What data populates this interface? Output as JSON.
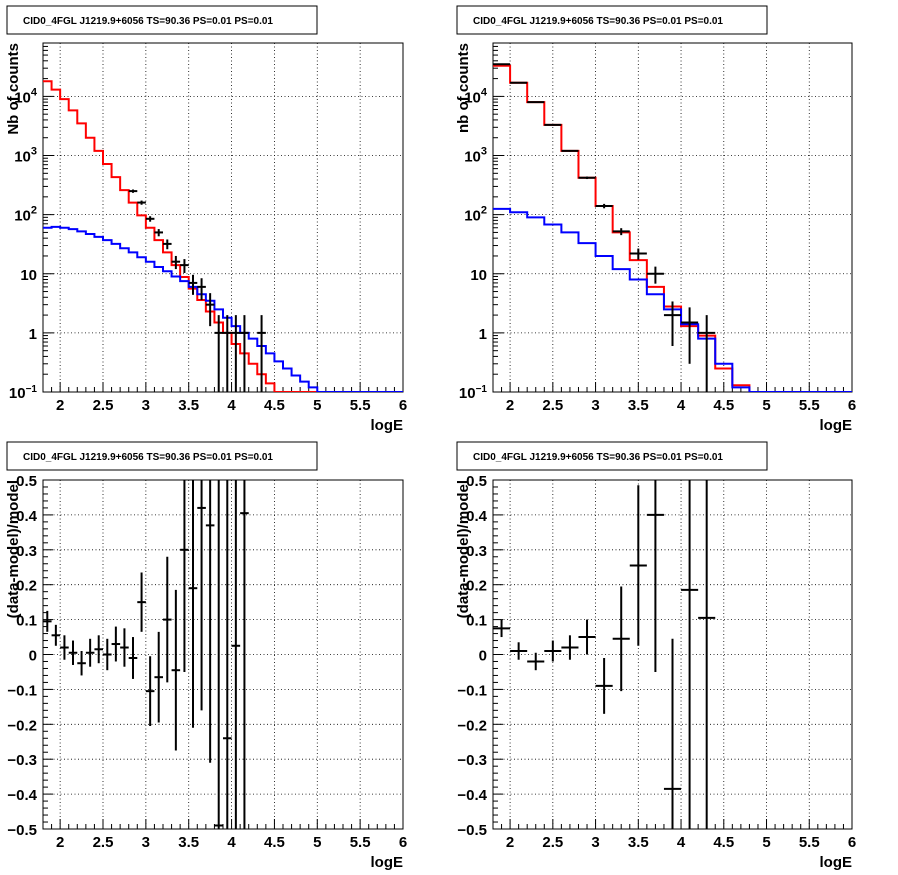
{
  "chart_data": [
    {
      "type": "line",
      "title": "CID0_4FGL J1219.9+6056 TS=90.36 PS=0.01 PS=0.01",
      "xlabel": "logE",
      "ylabel": "Nb of counts",
      "yscale": "log",
      "xlim": [
        1.8,
        6.0
      ],
      "ylim": [
        0.1,
        80000
      ],
      "grid": true,
      "xticks": [
        "2",
        "2.5",
        "3",
        "3.5",
        "4",
        "4.5",
        "5",
        "5.5",
        "6"
      ],
      "yticks": [
        "10^{-1}",
        "1",
        "10",
        "10^{2}",
        "10^{3}",
        "10^{4}"
      ],
      "bin_edges": [
        1.8,
        1.9,
        2.0,
        2.1,
        2.2,
        2.3,
        2.4,
        2.5,
        2.6,
        2.7,
        2.8,
        2.9,
        3.0,
        3.1,
        3.2,
        3.3,
        3.4,
        3.5,
        3.6,
        3.7,
        3.8,
        3.9,
        4.0,
        4.1,
        4.2,
        4.3,
        4.4,
        4.5,
        4.6,
        4.7,
        4.8,
        4.9,
        5.0,
        5.1,
        5.2,
        5.3,
        5.4,
        5.5,
        5.6,
        5.7,
        5.8,
        5.9,
        6.0
      ],
      "series": [
        {
          "color": "#ff0000",
          "values": [
            18000,
            13000,
            9000,
            5800,
            3500,
            2000,
            1200,
            720,
            430,
            260,
            160,
            97,
            60,
            37,
            23,
            14,
            8.8,
            5.6,
            3.6,
            2.3,
            1.5,
            1.0,
            0.65,
            0.45,
            0.3,
            0.2,
            0.14,
            0.1,
            0.1,
            0.1,
            0.1,
            0.1,
            0.1,
            0.1,
            0.1,
            0.1,
            0.1,
            0.1,
            0.1,
            0.1,
            0.1,
            0.1
          ]
        },
        {
          "color": "#0000ff",
          "values": [
            60,
            62,
            60,
            57,
            52,
            47,
            42,
            37,
            32,
            27,
            23,
            19,
            16,
            13,
            11,
            9,
            7.5,
            6,
            4.5,
            3.5,
            2.5,
            1.8,
            1.3,
            1.0,
            0.8,
            0.6,
            0.45,
            0.33,
            0.25,
            0.19,
            0.15,
            0.12,
            0.1,
            0.1,
            0.1,
            0.1,
            0.1,
            0.1,
            0.1,
            0.1,
            0.1,
            0.1
          ]
        }
      ],
      "points": [
        {
          "x": 2.85,
          "y": 250,
          "err": 16
        },
        {
          "x": 2.95,
          "y": 160,
          "err": 13
        },
        {
          "x": 3.05,
          "y": 85,
          "err": 9
        },
        {
          "x": 3.15,
          "y": 50,
          "err": 7
        },
        {
          "x": 3.25,
          "y": 32,
          "err": 6
        },
        {
          "x": 3.35,
          "y": 16,
          "err": 4
        },
        {
          "x": 3.45,
          "y": 14,
          "err": 3.7
        },
        {
          "x": 3.55,
          "y": 7,
          "err": 2.6
        },
        {
          "x": 3.65,
          "y": 6,
          "err": 2.4
        },
        {
          "x": 3.75,
          "y": 3,
          "err": 1.7
        },
        {
          "x": 3.85,
          "y": 1,
          "err": 1.0
        },
        {
          "x": 3.95,
          "y": 1,
          "err": 1.0
        },
        {
          "x": 4.05,
          "y": 1,
          "err": 1.0
        },
        {
          "x": 4.15,
          "y": 1,
          "err": 1.0
        },
        {
          "x": 4.35,
          "y": 1,
          "err": 1.0
        }
      ]
    },
    {
      "type": "line",
      "title": "CID0_4FGL J1219.9+6056 TS=90.36 PS=0.01 PS=0.01",
      "xlabel": "logE",
      "ylabel": "nb of counts",
      "yscale": "log",
      "xlim": [
        1.8,
        6.0
      ],
      "ylim": [
        0.1,
        80000
      ],
      "grid": true,
      "xticks": [
        "2",
        "2.5",
        "3",
        "3.5",
        "4",
        "4.5",
        "5",
        "5.5",
        "6"
      ],
      "yticks": [
        "10^{-1}",
        "1",
        "10",
        "10^{2}",
        "10^{3}",
        "10^{4}"
      ],
      "bin_edges": [
        1.8,
        2.0,
        2.2,
        2.4,
        2.6,
        2.8,
        3.0,
        3.2,
        3.4,
        3.6,
        3.8,
        4.0,
        4.2,
        4.4,
        4.6,
        4.8,
        5.0,
        5.2,
        5.4,
        5.6,
        5.8,
        6.0
      ],
      "series": [
        {
          "color": "#ff0000",
          "values": [
            33000,
            17000,
            8000,
            3300,
            1200,
            420,
            140,
            50,
            17,
            6,
            2.8,
            1.3,
            0.9,
            0.25,
            0.13,
            0.1,
            0.1,
            0.1,
            0.1,
            0.1,
            0.1
          ]
        },
        {
          "color": "#0000ff",
          "values": [
            125,
            110,
            90,
            68,
            50,
            33,
            20,
            12,
            8,
            4.5,
            2.5,
            1.4,
            0.8,
            0.3,
            0.12,
            0.1,
            0.1,
            0.1,
            0.1,
            0.1,
            0.1
          ]
        }
      ],
      "points": [
        {
          "x": 1.9,
          "y": 35000,
          "err": 190
        },
        {
          "x": 2.1,
          "y": 17000,
          "err": 130
        },
        {
          "x": 2.3,
          "y": 8000,
          "err": 90
        },
        {
          "x": 2.5,
          "y": 3300,
          "err": 57
        },
        {
          "x": 2.7,
          "y": 1200,
          "err": 35
        },
        {
          "x": 2.9,
          "y": 420,
          "err": 20
        },
        {
          "x": 3.1,
          "y": 140,
          "err": 12
        },
        {
          "x": 3.3,
          "y": 52,
          "err": 7
        },
        {
          "x": 3.5,
          "y": 22,
          "err": 4.7
        },
        {
          "x": 3.7,
          "y": 10,
          "err": 3.2
        },
        {
          "x": 3.9,
          "y": 2,
          "err": 1.4
        },
        {
          "x": 4.1,
          "y": 1.5,
          "err": 1.2
        },
        {
          "x": 4.3,
          "y": 1,
          "err": 1.0
        }
      ]
    },
    {
      "type": "scatter",
      "title": "CID0_4FGL J1219.9+6056 TS=90.36 PS=0.01 PS=0.01",
      "xlabel": "logE",
      "ylabel": "(data-model)/model",
      "xlim": [
        1.8,
        6.0
      ],
      "ylim": [
        -0.5,
        0.5
      ],
      "grid": true,
      "xticks": [
        "2",
        "2.5",
        "3",
        "3.5",
        "4",
        "4.5",
        "5",
        "5.5",
        "6"
      ],
      "yticks": [
        "-0.5",
        "-0.4",
        "-0.3",
        "-0.2",
        "-0.1",
        "0",
        "0.1",
        "0.2",
        "0.3",
        "0.4",
        "0.5"
      ],
      "bin_width": 0.1,
      "points": [
        {
          "x": 1.85,
          "y": 0.095,
          "err": 0.03
        },
        {
          "x": 1.95,
          "y": 0.055,
          "err": 0.03
        },
        {
          "x": 2.05,
          "y": 0.02,
          "err": 0.035
        },
        {
          "x": 2.15,
          "y": 0.005,
          "err": 0.035
        },
        {
          "x": 2.25,
          "y": -0.025,
          "err": 0.035
        },
        {
          "x": 2.35,
          "y": 0.005,
          "err": 0.04
        },
        {
          "x": 2.45,
          "y": 0.015,
          "err": 0.04
        },
        {
          "x": 2.55,
          "y": 0.0,
          "err": 0.045
        },
        {
          "x": 2.65,
          "y": 0.03,
          "err": 0.05
        },
        {
          "x": 2.75,
          "y": 0.02,
          "err": 0.055
        },
        {
          "x": 2.85,
          "y": -0.01,
          "err": 0.06
        },
        {
          "x": 2.95,
          "y": 0.15,
          "err": 0.085
        },
        {
          "x": 3.05,
          "y": -0.105,
          "err": 0.1
        },
        {
          "x": 3.15,
          "y": -0.065,
          "err": 0.13
        },
        {
          "x": 3.25,
          "y": 0.1,
          "err": 0.18
        },
        {
          "x": 3.35,
          "y": -0.045,
          "err": 0.23
        },
        {
          "x": 3.45,
          "y": 0.3,
          "err": 0.35
        },
        {
          "x": 3.55,
          "y": 0.19,
          "err": 0.4
        },
        {
          "x": 3.65,
          "y": 0.42,
          "err": 0.58
        },
        {
          "x": 3.75,
          "y": 0.37,
          "err": 0.68
        },
        {
          "x": 3.85,
          "y": -0.49,
          "err": 1.0
        },
        {
          "x": 3.95,
          "y": -0.24,
          "err": 1.0
        },
        {
          "x": 4.05,
          "y": 0.025,
          "err": 1.0
        },
        {
          "x": 4.15,
          "y": 0.405,
          "err": 1.0
        }
      ]
    },
    {
      "type": "scatter",
      "title": "CID0_4FGL J1219.9+6056 TS=90.36 PS=0.01 PS=0.01",
      "xlabel": "logE",
      "ylabel": "(data-model)/model",
      "xlim": [
        1.8,
        6.0
      ],
      "ylim": [
        -0.5,
        0.5
      ],
      "grid": true,
      "xticks": [
        "2",
        "2.5",
        "3",
        "3.5",
        "4",
        "4.5",
        "5",
        "5.5",
        "6"
      ],
      "yticks": [
        "-0.5",
        "-0.4",
        "-0.3",
        "-0.2",
        "-0.1",
        "0",
        "0.1",
        "0.2",
        "0.3",
        "0.4",
        "0.5"
      ],
      "bin_width": 0.2,
      "points": [
        {
          "x": 1.9,
          "y": 0.075,
          "err": 0.025
        },
        {
          "x": 2.1,
          "y": 0.01,
          "err": 0.025
        },
        {
          "x": 2.3,
          "y": -0.02,
          "err": 0.025
        },
        {
          "x": 2.5,
          "y": 0.01,
          "err": 0.03
        },
        {
          "x": 2.7,
          "y": 0.02,
          "err": 0.035
        },
        {
          "x": 2.9,
          "y": 0.05,
          "err": 0.05
        },
        {
          "x": 3.1,
          "y": -0.09,
          "err": 0.08
        },
        {
          "x": 3.3,
          "y": 0.045,
          "err": 0.15
        },
        {
          "x": 3.5,
          "y": 0.255,
          "err": 0.23
        },
        {
          "x": 3.7,
          "y": 0.4,
          "err": 0.45
        },
        {
          "x": 3.9,
          "y": -0.385,
          "err": 0.43
        },
        {
          "x": 4.1,
          "y": 0.185,
          "err": 1.0
        },
        {
          "x": 4.3,
          "y": 0.105,
          "err": 1.0
        }
      ]
    }
  ]
}
